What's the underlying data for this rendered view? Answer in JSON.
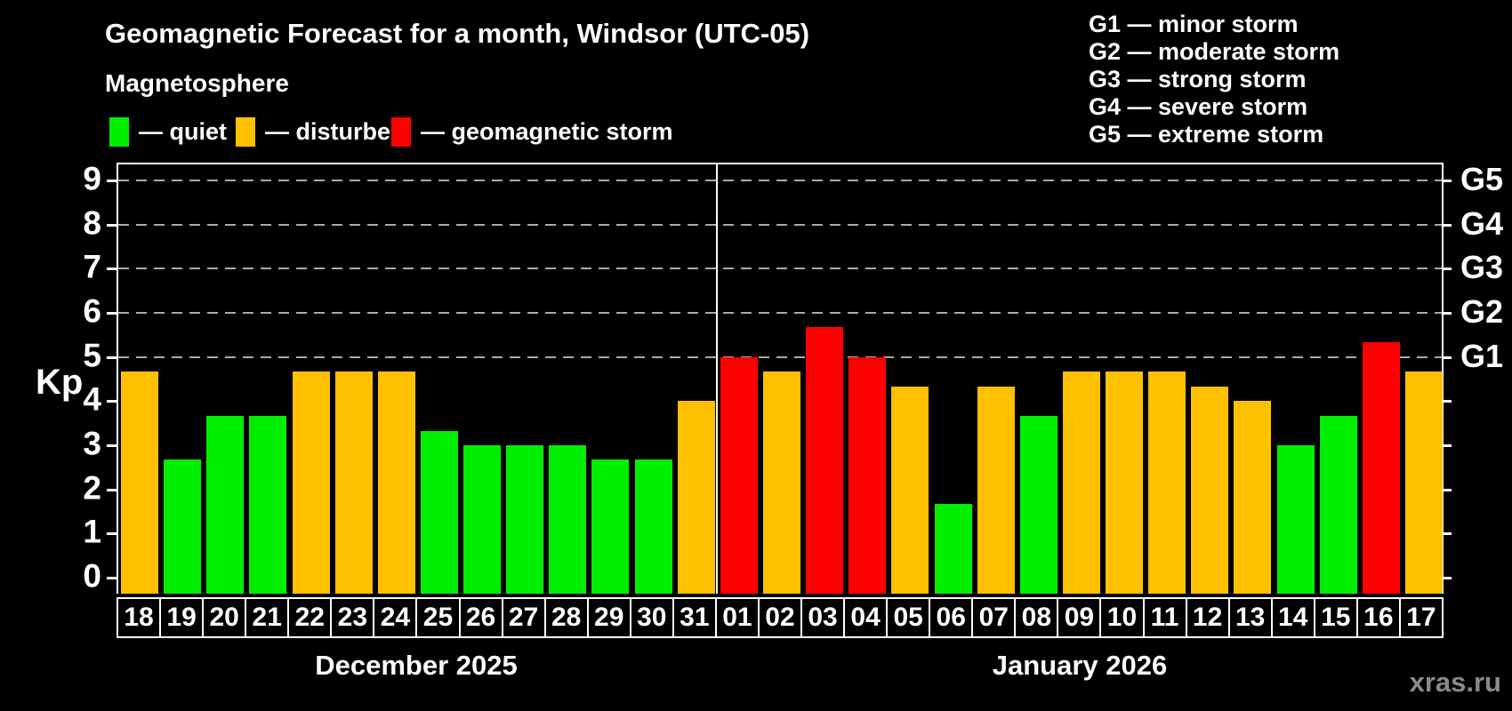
{
  "chart_data": {
    "type": "bar",
    "title": "Geomagnetic Forecast for a month, Windsor (UTC-05)",
    "subtitle": "Magnetosphere",
    "kp_axis_label": "Kp",
    "ylim": [
      0,
      9.4
    ],
    "yticks": [
      0,
      1,
      2,
      3,
      4,
      5,
      6,
      7,
      8,
      9
    ],
    "grid_levels": [
      5,
      6,
      7,
      8,
      9
    ],
    "grid_style": "dashed",
    "legend_position": "top-left",
    "colors": {
      "quiet": "#00EE00",
      "disturbed": "#FFC000",
      "storm": "#FF0000",
      "axis": "#FFFFFF",
      "background": "#000000",
      "watermark": "#8A8A8A"
    },
    "legend": [
      {
        "state": "quiet",
        "label": "— quiet"
      },
      {
        "state": "disturbed",
        "label": "— disturbed"
      },
      {
        "state": "storm",
        "label": "— geomagnetic storm"
      }
    ],
    "g_legend": [
      "G1 — minor storm",
      "G2 — moderate storm",
      "G3 — strong storm",
      "G4 — severe storm",
      "G5 — extreme storm"
    ],
    "g_levels": [
      {
        "label": "G5",
        "kp": 9
      },
      {
        "label": "G4",
        "kp": 8
      },
      {
        "label": "G3",
        "kp": 7
      },
      {
        "label": "G2",
        "kp": 6
      },
      {
        "label": "G1",
        "kp": 5
      }
    ],
    "months": [
      {
        "label": "December 2025",
        "days": 14
      },
      {
        "label": "January 2026",
        "days": 17
      }
    ],
    "bars": [
      {
        "day": "18",
        "value": 4.67,
        "state": "disturbed"
      },
      {
        "day": "19",
        "value": 2.67,
        "state": "quiet"
      },
      {
        "day": "20",
        "value": 3.67,
        "state": "quiet"
      },
      {
        "day": "21",
        "value": 3.67,
        "state": "quiet"
      },
      {
        "day": "22",
        "value": 4.67,
        "state": "disturbed"
      },
      {
        "day": "23",
        "value": 4.67,
        "state": "disturbed"
      },
      {
        "day": "24",
        "value": 4.67,
        "state": "disturbed"
      },
      {
        "day": "25",
        "value": 3.33,
        "state": "quiet"
      },
      {
        "day": "26",
        "value": 3.0,
        "state": "quiet"
      },
      {
        "day": "27",
        "value": 3.0,
        "state": "quiet"
      },
      {
        "day": "28",
        "value": 3.0,
        "state": "quiet"
      },
      {
        "day": "29",
        "value": 2.67,
        "state": "quiet"
      },
      {
        "day": "30",
        "value": 2.67,
        "state": "quiet"
      },
      {
        "day": "31",
        "value": 4.0,
        "state": "disturbed"
      },
      {
        "day": "01",
        "value": 5.0,
        "state": "storm"
      },
      {
        "day": "02",
        "value": 4.67,
        "state": "disturbed"
      },
      {
        "day": "03",
        "value": 5.67,
        "state": "storm"
      },
      {
        "day": "04",
        "value": 5.0,
        "state": "storm"
      },
      {
        "day": "05",
        "value": 4.33,
        "state": "disturbed"
      },
      {
        "day": "06",
        "value": 1.67,
        "state": "quiet"
      },
      {
        "day": "07",
        "value": 4.33,
        "state": "disturbed"
      },
      {
        "day": "08",
        "value": 3.67,
        "state": "quiet"
      },
      {
        "day": "09",
        "value": 4.67,
        "state": "disturbed"
      },
      {
        "day": "10",
        "value": 4.67,
        "state": "disturbed"
      },
      {
        "day": "11",
        "value": 4.67,
        "state": "disturbed"
      },
      {
        "day": "12",
        "value": 4.33,
        "state": "disturbed"
      },
      {
        "day": "13",
        "value": 4.0,
        "state": "disturbed"
      },
      {
        "day": "14",
        "value": 3.0,
        "state": "quiet"
      },
      {
        "day": "15",
        "value": 3.67,
        "state": "quiet"
      },
      {
        "day": "16",
        "value": 5.33,
        "state": "storm"
      },
      {
        "day": "17",
        "value": 4.67,
        "state": "disturbed"
      }
    ],
    "watermark": "xras.ru"
  }
}
